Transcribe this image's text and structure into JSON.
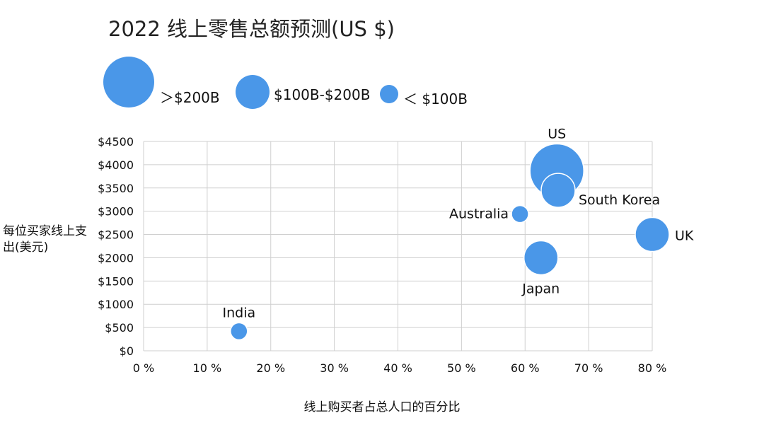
{
  "title": "2022 线上零售总额预测(US $)",
  "legend": {
    "items": [
      {
        "label": "＞$200B",
        "size": "large"
      },
      {
        "label": "$100B-$200B",
        "size": "medium"
      },
      {
        "label": "＜ $100B",
        "size": "small"
      }
    ]
  },
  "colors": {
    "bubble": "#4a97e8",
    "grid": "#cfcfcf"
  },
  "chart_data": {
    "type": "scatter",
    "title": "2022 线上零售总额预测(US $)",
    "xlabel": "线上购买者占总人口的百分比",
    "ylabel": "每位买家线上支出(美元)",
    "xlim": [
      0,
      80
    ],
    "ylim": [
      0,
      4500
    ],
    "x_ticks": [
      0,
      10,
      20,
      30,
      40,
      50,
      60,
      70,
      80
    ],
    "x_tick_labels": [
      "0 %",
      "10 %",
      "20 %",
      "30 %",
      "40 %",
      "50 %",
      "60 %",
      "70 %",
      "80 %"
    ],
    "y_ticks": [
      0,
      500,
      1000,
      1500,
      2000,
      2500,
      3000,
      3500,
      4000,
      4500
    ],
    "y_tick_labels": [
      "$0",
      "$500",
      "$1000",
      "$1500",
      "$2000",
      "$2500",
      "$3000",
      "$3500",
      "$4000",
      "$4500"
    ],
    "grid": true,
    "points": [
      {
        "label": "US",
        "x": 65,
        "y": 3870,
        "size_class": "> $200B",
        "label_pos": "above"
      },
      {
        "label": "South Korea",
        "x": 65.2,
        "y": 3450,
        "size_class": "$100B-$200B",
        "label_pos": "right-below"
      },
      {
        "label": "Australia",
        "x": 59.2,
        "y": 2940,
        "size_class": "< $100B",
        "label_pos": "left"
      },
      {
        "label": "UK",
        "x": 80,
        "y": 2500,
        "size_class": "$100B-$200B",
        "label_pos": "right"
      },
      {
        "label": "Japan",
        "x": 62.5,
        "y": 2000,
        "size_class": "$100B-$200B",
        "label_pos": "below"
      },
      {
        "label": "India",
        "x": 15,
        "y": 420,
        "size_class": "< $100B",
        "label_pos": "above"
      }
    ]
  }
}
